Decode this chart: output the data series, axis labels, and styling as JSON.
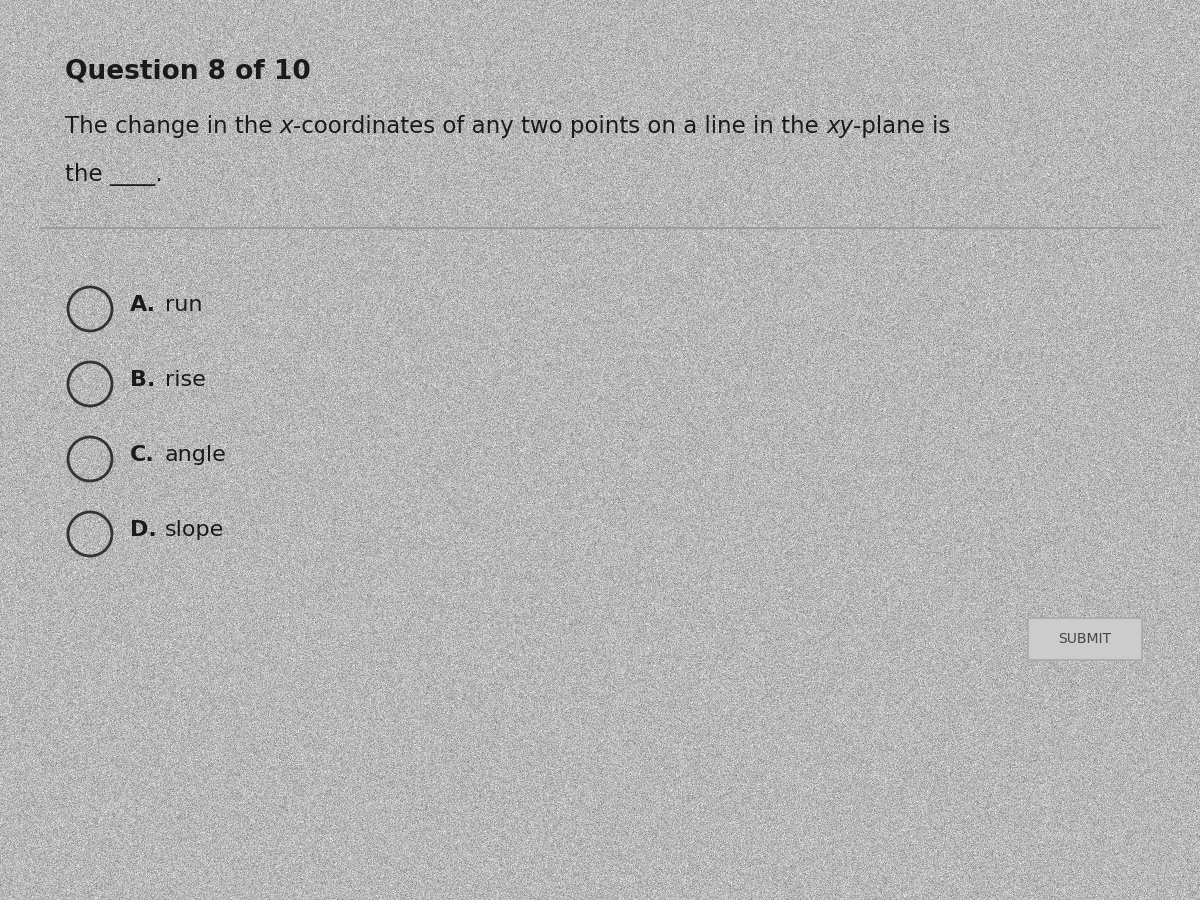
{
  "background_color": "#b8b8b8",
  "question_header": "Question 8 of 10",
  "question_text_line1_segments": [
    [
      "The change in the ",
      false
    ],
    [
      "x",
      true
    ],
    [
      "-coordinates of any two points on a line in the ",
      false
    ],
    [
      "xy",
      true
    ],
    [
      "-plane is",
      false
    ]
  ],
  "question_text_line2": "the ____.",
  "options": [
    {
      "label": "A.",
      "text": "  run"
    },
    {
      "label": "B.",
      "text": "  rise"
    },
    {
      "label": "C.",
      "text": "  angle"
    },
    {
      "label": "D.",
      "text": "  slope"
    }
  ],
  "divider_color": "#999999",
  "header_fontsize": 19,
  "question_fontsize": 16.5,
  "option_label_fontsize": 16,
  "option_text_fontsize": 16,
  "submit_fontsize": 10,
  "text_color": "#1a1a1a",
  "circle_edge_color": "#333333",
  "submit_bg": "#cccccc",
  "submit_border": "#aaaaaa",
  "submit_text_color": "#444444",
  "noise_alpha": 0.08
}
